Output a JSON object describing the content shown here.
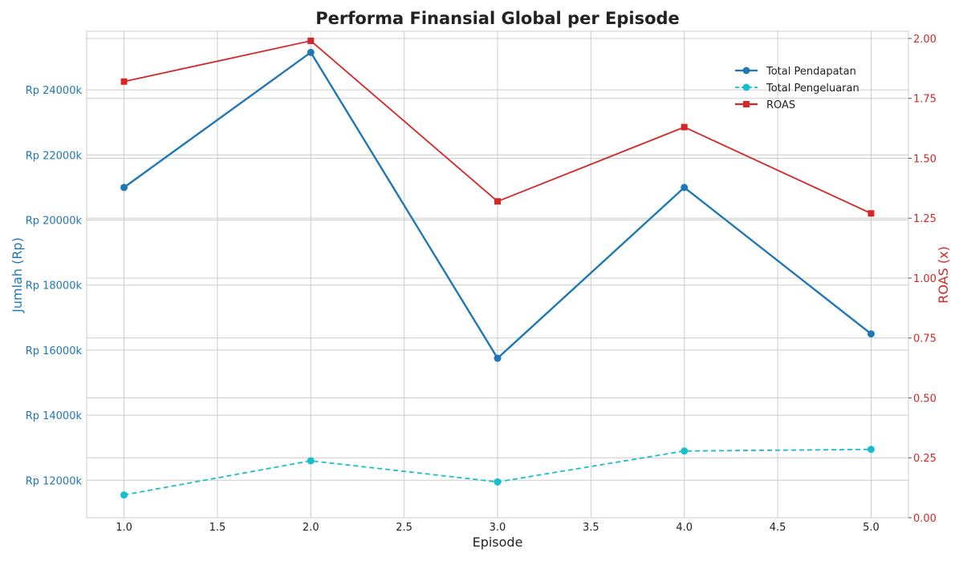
{
  "chart_data": {
    "type": "line",
    "title": "Performa Finansial Global per Episode",
    "xlabel": "Episode",
    "ylabel_left": "Jumlah (Rp)",
    "ylabel_right": "ROAS (x)",
    "x": [
      1.0,
      2.0,
      3.0,
      4.0,
      5.0
    ],
    "xlim": [
      0.8,
      5.2
    ],
    "xticks": [
      1.0,
      1.5,
      2.0,
      2.5,
      3.0,
      3.5,
      4.0,
      4.5,
      5.0
    ],
    "xtick_labels": [
      "1.0",
      "1.5",
      "2.0",
      "2.5",
      "3.0",
      "3.5",
      "4.0",
      "4.5",
      "5.0"
    ],
    "ylim_left": [
      10850,
      25800
    ],
    "yticks_left": [
      12000,
      14000,
      16000,
      18000,
      20000,
      22000,
      24000
    ],
    "ytick_labels_left": [
      "Rp 12000k",
      "Rp 14000k",
      "Rp 16000k",
      "Rp 18000k",
      "Rp 20000k",
      "Rp 22000k",
      "Rp 24000k"
    ],
    "ylim_right": [
      0.0,
      2.03
    ],
    "yticks_right": [
      0.0,
      0.25,
      0.5,
      0.75,
      1.0,
      1.25,
      1.5,
      1.75,
      2.0
    ],
    "ytick_labels_right": [
      "0.00",
      "0.25",
      "0.50",
      "0.75",
      "1.00",
      "1.25",
      "1.50",
      "1.75",
      "2.00"
    ],
    "grid": true,
    "legend_position": "top-right",
    "series": [
      {
        "name": "Total Pendapatan",
        "axis": "left",
        "color": "#1f77b4",
        "style": "solid",
        "marker": "circle",
        "values": [
          21000,
          25150,
          15750,
          21000,
          16500
        ]
      },
      {
        "name": "Total Pengeluaran",
        "axis": "left",
        "color": "#17becf",
        "style": "dashed",
        "marker": "circle",
        "values": [
          11550,
          12600,
          11950,
          12900,
          12950
        ]
      },
      {
        "name": "ROAS",
        "axis": "right",
        "color": "#d62728",
        "style": "solid",
        "marker": "square",
        "values": [
          1.82,
          1.99,
          1.32,
          1.63,
          1.27
        ]
      }
    ],
    "colors": {
      "left_axis": "#1f77b4",
      "right_axis": "#d62728",
      "grid": "#cccccc",
      "spine": "#cccccc"
    }
  }
}
